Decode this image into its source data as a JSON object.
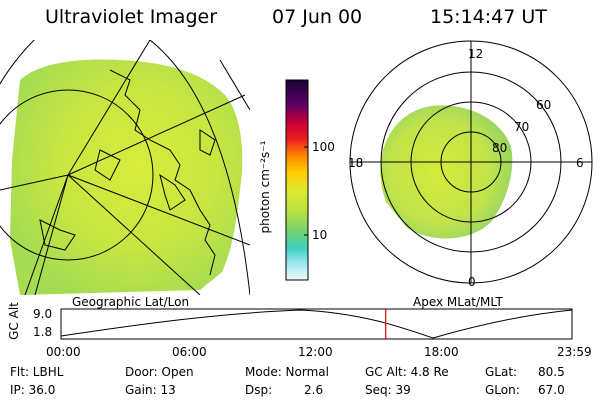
{
  "header": {
    "title": "Ultraviolet Imager",
    "date": "07 Jun 00",
    "time": "15:14:47 UT"
  },
  "left_panel": {
    "label": "Geographic Lat/Lon"
  },
  "colorbar": {
    "unit_label": "photon cm⁻²s⁻¹",
    "tick_100": "100",
    "tick_10": "10"
  },
  "right_panel": {
    "label": "Apex MLat/MLT",
    "mlt_top": "12",
    "mlt_left": "18",
    "mlt_right": "6",
    "mlt_bottom": "0",
    "lat_60": "60",
    "lat_70": "70",
    "lat_80": "80"
  },
  "altitude_plot": {
    "ylabel": "GC Alt",
    "ytick_top": "9.0",
    "ytick_bottom": "1.8",
    "xticks": [
      "00:00",
      "06:00",
      "12:00",
      "18:00",
      "23:59"
    ],
    "current_time_hours": 15.25,
    "marker_color": "#dd0000"
  },
  "info": {
    "flt": "Flt: LBHL",
    "ip": "IP: 36.0",
    "door": "Door: Open",
    "gain": "Gain: 13",
    "mode": "Mode: Normal",
    "dsp_label": "Dsp:",
    "dsp_value": "2.6",
    "gc_alt": "GC Alt: 4.8 Re",
    "seq": "Seq: 39",
    "glat_label": "GLat:",
    "glat_value": "80.5",
    "glon_label": "GLon:",
    "glon_value": "67.0"
  }
}
